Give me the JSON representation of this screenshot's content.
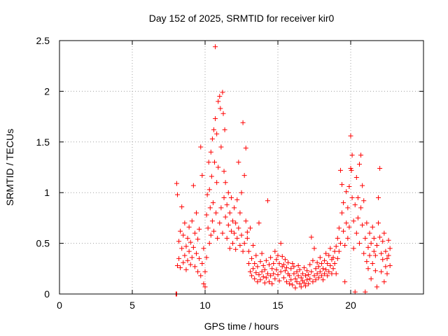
{
  "chart_data": {
    "type": "scatter",
    "title": "Day 152 of 2025, SRMTID for receiver kir0",
    "xlabel": "GPS time / hours",
    "ylabel": "SRMTID / TECUs",
    "xlim": [
      0,
      25
    ],
    "ylim": [
      0,
      2.5
    ],
    "xticks": [
      0,
      5,
      10,
      15,
      20
    ],
    "xtick_labels": [
      "0",
      "5",
      "10",
      "15",
      "20"
    ],
    "yticks": [
      0,
      0.5,
      1,
      1.5,
      2,
      2.5
    ],
    "ytick_labels": [
      "0",
      "0.5",
      "1",
      "1.5",
      "2",
      "2.5"
    ],
    "grid": true,
    "marker": "plus",
    "color": "#ff0000",
    "series": [
      {
        "name": "SRMTID",
        "points": [
          [
            8.0,
            0.0
          ],
          [
            8.05,
            0.0
          ],
          [
            8.05,
            1.09
          ],
          [
            8.1,
            0.98
          ],
          [
            8.1,
            0.28
          ],
          [
            8.2,
            0.35
          ],
          [
            8.2,
            0.52
          ],
          [
            8.3,
            0.26
          ],
          [
            8.3,
            0.62
          ],
          [
            8.4,
            0.86
          ],
          [
            8.4,
            0.45
          ],
          [
            8.5,
            0.31
          ],
          [
            8.5,
            0.58
          ],
          [
            8.6,
            0.38
          ],
          [
            8.6,
            0.7
          ],
          [
            8.7,
            0.24
          ],
          [
            8.7,
            0.47
          ],
          [
            8.8,
            0.55
          ],
          [
            8.8,
            0.33
          ],
          [
            8.9,
            0.66
          ],
          [
            8.9,
            0.42
          ],
          [
            9.0,
            0.29
          ],
          [
            9.0,
            0.51
          ],
          [
            9.1,
            0.72
          ],
          [
            9.1,
            0.36
          ],
          [
            9.2,
            1.07
          ],
          [
            9.2,
            0.46
          ],
          [
            9.3,
            0.6
          ],
          [
            9.3,
            0.27
          ],
          [
            9.4,
            0.8
          ],
          [
            9.4,
            0.4
          ],
          [
            9.5,
            0.22
          ],
          [
            9.5,
            0.54
          ],
          [
            9.6,
            0.35
          ],
          [
            9.6,
            0.64
          ],
          [
            9.7,
            1.45
          ],
          [
            9.7,
            0.18
          ],
          [
            9.8,
            1.17
          ],
          [
            9.8,
            0.3
          ],
          [
            9.9,
            0.1
          ],
          [
            9.9,
            0.45
          ],
          [
            10.0,
            0.07
          ],
          [
            10.0,
            0.22
          ],
          [
            10.1,
            0.36
          ],
          [
            10.1,
            0.78
          ],
          [
            10.15,
            0.98
          ],
          [
            10.2,
            0.65
          ],
          [
            10.25,
            1.3
          ],
          [
            10.3,
            0.5
          ],
          [
            10.3,
            1.03
          ],
          [
            10.35,
            0.85
          ],
          [
            10.4,
            0.58
          ],
          [
            10.4,
            1.4
          ],
          [
            10.45,
            1.16
          ],
          [
            10.5,
            0.72
          ],
          [
            10.5,
            1.53
          ],
          [
            10.55,
            0.9
          ],
          [
            10.6,
            1.62
          ],
          [
            10.6,
            0.62
          ],
          [
            10.65,
            1.3
          ],
          [
            10.7,
            2.44
          ],
          [
            10.7,
            1.73
          ],
          [
            10.75,
            0.8
          ],
          [
            10.8,
            1.58
          ],
          [
            10.8,
            1.1
          ],
          [
            10.85,
            0.55
          ],
          [
            10.9,
            1.9
          ],
          [
            10.9,
            1.25
          ],
          [
            11.0,
            1.95
          ],
          [
            11.0,
            0.7
          ],
          [
            11.05,
            1.83
          ],
          [
            11.1,
            1.45
          ],
          [
            11.1,
            0.85
          ],
          [
            11.2,
            1.99
          ],
          [
            11.2,
            0.6
          ],
          [
            11.25,
            1.78
          ],
          [
            11.3,
            1.21
          ],
          [
            11.3,
            0.95
          ],
          [
            11.35,
            1.62
          ],
          [
            11.4,
            0.76
          ],
          [
            11.4,
            1.1
          ],
          [
            11.5,
            0.55
          ],
          [
            11.5,
            0.88
          ],
          [
            11.6,
            0.68
          ],
          [
            11.6,
            1.0
          ],
          [
            11.7,
            0.45
          ],
          [
            11.7,
            0.8
          ],
          [
            11.8,
            0.62
          ],
          [
            11.8,
            0.95
          ],
          [
            11.9,
            0.5
          ],
          [
            11.9,
            0.72
          ],
          [
            12.0,
            0.85
          ],
          [
            12.0,
            0.6
          ],
          [
            12.1,
            0.7
          ],
          [
            12.1,
            0.44
          ],
          [
            12.2,
            0.93
          ],
          [
            12.2,
            0.55
          ],
          [
            12.3,
            1.3
          ],
          [
            12.3,
            0.65
          ],
          [
            12.4,
            0.48
          ],
          [
            12.4,
            0.8
          ],
          [
            12.5,
            0.58
          ],
          [
            12.5,
            1.0
          ],
          [
            12.6,
            1.69
          ],
          [
            12.6,
            0.42
          ],
          [
            12.7,
            1.17
          ],
          [
            12.7,
            0.5
          ],
          [
            12.8,
            1.44
          ],
          [
            12.8,
            0.72
          ],
          [
            12.9,
            0.61
          ],
          [
            12.9,
            0.55
          ],
          [
            13.0,
            0.3
          ],
          [
            13.0,
            0.42
          ],
          [
            13.1,
            0.22
          ],
          [
            13.1,
            0.65
          ],
          [
            13.2,
            0.35
          ],
          [
            13.2,
            0.18
          ],
          [
            13.3,
            0.25
          ],
          [
            13.3,
            0.48
          ],
          [
            13.4,
            0.15
          ],
          [
            13.4,
            0.3
          ],
          [
            13.5,
            0.21
          ],
          [
            13.5,
            0.38
          ],
          [
            13.6,
            0.12
          ],
          [
            13.6,
            0.27
          ],
          [
            13.7,
            0.7
          ],
          [
            13.7,
            0.19
          ],
          [
            13.8,
            0.32
          ],
          [
            13.8,
            0.14
          ],
          [
            13.9,
            0.22
          ],
          [
            13.9,
            0.4
          ],
          [
            14.0,
            0.17
          ],
          [
            14.0,
            0.28
          ],
          [
            14.1,
            0.11
          ],
          [
            14.1,
            0.24
          ],
          [
            14.2,
            0.33
          ],
          [
            14.2,
            0.16
          ],
          [
            14.3,
            0.92
          ],
          [
            14.3,
            0.2
          ],
          [
            14.4,
            0.12
          ],
          [
            14.4,
            0.29
          ],
          [
            14.5,
            0.36
          ],
          [
            14.5,
            0.18
          ],
          [
            14.6,
            0.25
          ],
          [
            14.6,
            0.1
          ],
          [
            14.7,
            0.3
          ],
          [
            14.7,
            0.2
          ],
          [
            14.8,
            0.42
          ],
          [
            14.8,
            0.15
          ],
          [
            14.9,
            0.34
          ],
          [
            14.9,
            0.24
          ],
          [
            15.0,
            0.38
          ],
          [
            15.0,
            0.19
          ],
          [
            15.1,
            0.3
          ],
          [
            15.1,
            0.13
          ],
          [
            15.2,
            0.5
          ],
          [
            15.2,
            0.22
          ],
          [
            15.3,
            0.27
          ],
          [
            15.3,
            0.37
          ],
          [
            15.4,
            0.16
          ],
          [
            15.4,
            0.29
          ],
          [
            15.5,
            0.23
          ],
          [
            15.5,
            0.34
          ],
          [
            15.6,
            0.12
          ],
          [
            15.6,
            0.26
          ],
          [
            15.7,
            0.2
          ],
          [
            15.7,
            0.31
          ],
          [
            15.8,
            0.1
          ],
          [
            15.8,
            0.18
          ],
          [
            15.9,
            0.25
          ],
          [
            15.9,
            0.14
          ],
          [
            16.0,
            0.3
          ],
          [
            16.0,
            0.09
          ],
          [
            16.1,
            0.2
          ],
          [
            16.1,
            0.27
          ],
          [
            16.2,
            0.15
          ],
          [
            16.2,
            0.06
          ],
          [
            16.3,
            0.22
          ],
          [
            16.3,
            0.12
          ],
          [
            16.4,
            0.28
          ],
          [
            16.4,
            0.18
          ],
          [
            16.5,
            0.1
          ],
          [
            16.5,
            0.24
          ],
          [
            16.6,
            0.16
          ],
          [
            16.6,
            0.07
          ],
          [
            16.7,
            0.2
          ],
          [
            16.7,
            0.13
          ],
          [
            16.8,
            0.26
          ],
          [
            16.8,
            0.11
          ],
          [
            16.9,
            0.18
          ],
          [
            16.9,
            0.08
          ],
          [
            17.0,
            0.23
          ],
          [
            17.0,
            0.14
          ],
          [
            17.1,
            0.1
          ],
          [
            17.1,
            0.19
          ],
          [
            17.2,
            0.29
          ],
          [
            17.2,
            0.15
          ],
          [
            17.3,
            0.56
          ],
          [
            17.3,
            0.22
          ],
          [
            17.4,
            0.12
          ],
          [
            17.4,
            0.33
          ],
          [
            17.5,
            0.18
          ],
          [
            17.5,
            0.45
          ],
          [
            17.6,
            0.25
          ],
          [
            17.6,
            0.14
          ],
          [
            17.7,
            0.2
          ],
          [
            17.7,
            0.31
          ],
          [
            17.8,
            0.16
          ],
          [
            17.8,
            0.27
          ],
          [
            17.9,
            0.22
          ],
          [
            17.9,
            0.36
          ],
          [
            18.0,
            0.18
          ],
          [
            18.0,
            0.3
          ],
          [
            18.1,
            0.25
          ],
          [
            18.1,
            0.14
          ],
          [
            18.2,
            0.33
          ],
          [
            18.2,
            0.2
          ],
          [
            18.3,
            0.4
          ],
          [
            18.3,
            0.24
          ],
          [
            18.4,
            0.18
          ],
          [
            18.4,
            0.3
          ],
          [
            18.5,
            0.38
          ],
          [
            18.5,
            0.22
          ],
          [
            18.6,
            0.28
          ],
          [
            18.6,
            0.45
          ],
          [
            18.7,
            0.2
          ],
          [
            18.7,
            0.34
          ],
          [
            18.8,
            0.25
          ],
          [
            18.8,
            0.36
          ],
          [
            18.9,
            0.42
          ],
          [
            18.9,
            0.3
          ],
          [
            19.0,
            0.2
          ],
          [
            19.0,
            0.47
          ],
          [
            19.1,
            0.35
          ],
          [
            19.1,
            0.55
          ],
          [
            19.2,
            0.42
          ],
          [
            19.2,
            0.65
          ],
          [
            19.3,
            1.22
          ],
          [
            19.3,
            0.5
          ],
          [
            19.4,
            1.08
          ],
          [
            19.4,
            0.8
          ],
          [
            19.5,
            0.62
          ],
          [
            19.5,
            0.9
          ],
          [
            19.6,
            0.12
          ],
          [
            19.6,
            0.48
          ],
          [
            19.7,
            1.01
          ],
          [
            19.7,
            0.7
          ],
          [
            19.8,
            0.85
          ],
          [
            19.8,
            0.55
          ],
          [
            19.9,
            1.06
          ],
          [
            19.9,
            0.66
          ],
          [
            20.0,
            1.56
          ],
          [
            20.0,
            1.24
          ],
          [
            20.05,
            1.22
          ],
          [
            20.1,
            1.37
          ],
          [
            20.1,
            0.95
          ],
          [
            20.2,
            0.72
          ],
          [
            20.2,
            0.45
          ],
          [
            20.3,
            0.02
          ],
          [
            20.3,
            0.88
          ],
          [
            20.4,
            1.15
          ],
          [
            20.4,
            0.6
          ],
          [
            20.5,
            0.95
          ],
          [
            20.5,
            0.75
          ],
          [
            20.6,
            1.28
          ],
          [
            20.6,
            0.5
          ],
          [
            20.7,
            1.37
          ],
          [
            20.7,
            0.85
          ],
          [
            20.8,
            1.07
          ],
          [
            20.8,
            0.68
          ],
          [
            20.9,
            0.92
          ],
          [
            20.9,
            0.4
          ],
          [
            21.0,
            0.02
          ],
          [
            21.0,
            0.55
          ],
          [
            21.1,
            0.32
          ],
          [
            21.1,
            0.7
          ],
          [
            21.2,
            0.46
          ],
          [
            21.2,
            0.25
          ],
          [
            21.3,
            0.6
          ],
          [
            21.3,
            0.38
          ],
          [
            21.4,
            0.15
          ],
          [
            21.4,
            0.5
          ],
          [
            21.5,
            0.3
          ],
          [
            21.5,
            0.66
          ],
          [
            21.6,
            0.42
          ],
          [
            21.6,
            0.55
          ],
          [
            21.7,
            0.23
          ],
          [
            21.7,
            0.38
          ],
          [
            21.8,
            0.07
          ],
          [
            21.8,
            0.48
          ],
          [
            21.9,
            0.95
          ],
          [
            21.9,
            0.7
          ],
          [
            22.0,
            1.24
          ],
          [
            22.0,
            0.56
          ],
          [
            22.1,
            0.4
          ],
          [
            22.1,
            0.22
          ],
          [
            22.2,
            0.52
          ],
          [
            22.2,
            0.34
          ],
          [
            22.3,
            0.6
          ],
          [
            22.3,
            0.12
          ],
          [
            22.4,
            0.42
          ],
          [
            22.4,
            0.27
          ],
          [
            22.5,
            0.35
          ],
          [
            22.5,
            0.2
          ],
          [
            22.6,
            0.53
          ],
          [
            22.6,
            0.38
          ],
          [
            22.7,
            0.28
          ],
          [
            22.7,
            0.45
          ]
        ]
      }
    ]
  }
}
